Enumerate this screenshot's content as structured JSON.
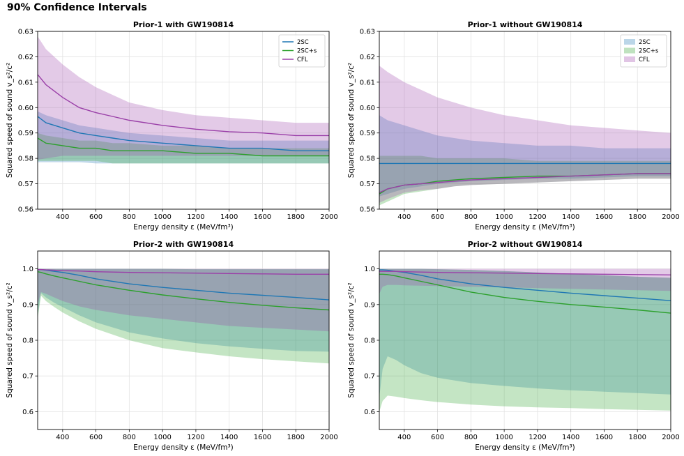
{
  "figure": {
    "title": "90% Confidence Intervals"
  },
  "colors": {
    "2SC": "#1f77b4",
    "2SC+s": "#2ca02c",
    "CFL": "#9a3fa8"
  },
  "chart_data": [
    {
      "type": "line",
      "title": "Prior-1 with GW190814",
      "xlabel": "Energy density ε (MeV/fm³)",
      "ylabel": "Squared speed of sound v_s²/c²",
      "xlim": [
        250,
        2000
      ],
      "ylim": [
        0.56,
        0.63
      ],
      "xticks": [
        400,
        600,
        800,
        1000,
        1200,
        1400,
        1600,
        1800,
        2000
      ],
      "yticks": [
        0.56,
        0.57,
        0.58,
        0.59,
        0.6,
        0.61,
        0.62,
        0.63
      ],
      "ytick_labels": [
        "0.56",
        "0.57",
        "0.58",
        "0.59",
        "0.60",
        "0.61",
        "0.62",
        "0.63"
      ],
      "legend": {
        "style": "line",
        "loc": "upper right",
        "entries": [
          "2SC",
          "2SC+s",
          "CFL"
        ]
      },
      "x": [
        250,
        300,
        400,
        500,
        600,
        700,
        800,
        1000,
        1200,
        1400,
        1600,
        1800,
        2000
      ],
      "series": [
        {
          "name": "2SC",
          "median": [
            0.5965,
            0.594,
            0.592,
            0.59,
            0.589,
            0.588,
            0.587,
            0.586,
            0.585,
            0.584,
            0.584,
            0.583,
            0.583
          ],
          "lower": [
            0.5785,
            0.5785,
            0.5785,
            0.5785,
            0.578,
            0.578,
            0.578,
            0.578,
            0.578,
            0.578,
            0.578,
            0.578,
            0.578
          ],
          "upper": [
            0.5985,
            0.597,
            0.595,
            0.593,
            0.592,
            0.591,
            0.59,
            0.589,
            0.588,
            0.587,
            0.587,
            0.587,
            0.587
          ]
        },
        {
          "name": "2SC+s",
          "median": [
            0.588,
            0.586,
            0.585,
            0.584,
            0.584,
            0.583,
            0.583,
            0.583,
            0.582,
            0.582,
            0.581,
            0.581,
            0.581
          ],
          "lower": [
            0.579,
            0.579,
            0.579,
            0.579,
            0.579,
            0.578,
            0.578,
            0.578,
            0.578,
            0.578,
            0.578,
            0.578,
            0.578
          ],
          "upper": [
            0.59,
            0.589,
            0.588,
            0.587,
            0.587,
            0.586,
            0.586,
            0.585,
            0.585,
            0.584,
            0.584,
            0.584,
            0.584
          ]
        },
        {
          "name": "CFL",
          "median": [
            0.613,
            0.609,
            0.604,
            0.6,
            0.598,
            0.5965,
            0.595,
            0.593,
            0.5915,
            0.5905,
            0.59,
            0.589,
            0.589
          ],
          "lower": [
            0.5795,
            0.58,
            0.581,
            0.581,
            0.581,
            0.581,
            0.581,
            0.581,
            0.581,
            0.581,
            0.581,
            0.581,
            0.581
          ],
          "upper": [
            0.628,
            0.623,
            0.617,
            0.612,
            0.608,
            0.605,
            0.602,
            0.599,
            0.597,
            0.596,
            0.595,
            0.594,
            0.594
          ]
        }
      ]
    },
    {
      "type": "line",
      "title": "Prior-1 without GW190814",
      "xlabel": "Energy density ε (MeV/fm³)",
      "ylabel": "Squared speed of sound v_s²/c²",
      "xlim": [
        250,
        2000
      ],
      "ylim": [
        0.56,
        0.63
      ],
      "xticks": [
        400,
        600,
        800,
        1000,
        1200,
        1400,
        1600,
        1800,
        2000
      ],
      "yticks": [
        0.56,
        0.57,
        0.58,
        0.59,
        0.6,
        0.61,
        0.62,
        0.63
      ],
      "ytick_labels": [
        "0.56",
        "0.57",
        "0.58",
        "0.59",
        "0.60",
        "0.61",
        "0.62",
        "0.63"
      ],
      "legend": {
        "style": "patch",
        "loc": "upper right",
        "entries": [
          "2SC",
          "2SC+s",
          "CFL"
        ]
      },
      "x": [
        250,
        300,
        400,
        500,
        600,
        700,
        800,
        1000,
        1200,
        1400,
        1600,
        1800,
        2000
      ],
      "series": [
        {
          "name": "2SC",
          "median": [
            0.578,
            0.578,
            0.578,
            0.578,
            0.578,
            0.578,
            0.578,
            0.578,
            0.578,
            0.578,
            0.578,
            0.578,
            0.578
          ],
          "lower": [
            0.565,
            0.566,
            0.568,
            0.569,
            0.57,
            0.5705,
            0.571,
            0.5715,
            0.572,
            0.572,
            0.5725,
            0.573,
            0.573
          ],
          "upper": [
            0.597,
            0.595,
            0.593,
            0.591,
            0.589,
            0.588,
            0.587,
            0.586,
            0.585,
            0.585,
            0.584,
            0.584,
            0.584
          ]
        },
        {
          "name": "2SC+s",
          "median": [
            0.566,
            0.568,
            0.5695,
            0.57,
            0.571,
            0.5715,
            0.572,
            0.5725,
            0.573,
            0.573,
            0.5735,
            0.574,
            0.574
          ],
          "lower": [
            0.5615,
            0.563,
            0.566,
            0.567,
            0.568,
            0.569,
            0.5695,
            0.57,
            0.5705,
            0.571,
            0.5715,
            0.572,
            0.572
          ],
          "upper": [
            0.581,
            0.581,
            0.581,
            0.581,
            0.58,
            0.58,
            0.58,
            0.58,
            0.579,
            0.579,
            0.579,
            0.579,
            0.579
          ]
        },
        {
          "name": "CFL",
          "median": [
            0.5665,
            0.568,
            0.5695,
            0.57,
            0.5705,
            0.571,
            0.5715,
            0.572,
            0.5725,
            0.573,
            0.5735,
            0.574,
            0.574
          ],
          "lower": [
            0.5625,
            0.564,
            0.5665,
            0.5675,
            0.568,
            0.569,
            0.5695,
            0.57,
            0.5705,
            0.571,
            0.5715,
            0.572,
            0.572
          ],
          "upper": [
            0.6165,
            0.614,
            0.61,
            0.607,
            0.604,
            0.602,
            0.6,
            0.597,
            0.595,
            0.593,
            0.592,
            0.591,
            0.59
          ]
        }
      ]
    },
    {
      "type": "line",
      "title": "Prior-2 with GW190814",
      "xlabel": "Energy density ε (MeV/fm³)",
      "ylabel": "Squared speed of sound v_s²/c²",
      "xlim": [
        250,
        2000
      ],
      "ylim": [
        0.55,
        1.05
      ],
      "xticks": [
        400,
        600,
        800,
        1000,
        1200,
        1400,
        1600,
        1800,
        2000
      ],
      "yticks": [
        0.6,
        0.7,
        0.8,
        0.9,
        1.0
      ],
      "ytick_labels": [
        "0.6",
        "0.7",
        "0.8",
        "0.9",
        "1.0"
      ],
      "legend": null,
      "x": [
        250,
        270,
        300,
        350,
        400,
        500,
        600,
        800,
        1000,
        1200,
        1400,
        1600,
        1800,
        2000
      ],
      "series": [
        {
          "name": "2SC",
          "median": [
            0.998,
            0.998,
            0.996,
            0.993,
            0.99,
            0.982,
            0.972,
            0.958,
            0.948,
            0.94,
            0.932,
            0.926,
            0.92,
            0.913
          ],
          "lower": [
            0.87,
            0.932,
            0.92,
            0.905,
            0.893,
            0.87,
            0.85,
            0.822,
            0.805,
            0.792,
            0.783,
            0.776,
            0.77,
            0.768
          ],
          "upper": [
            1.0,
            1.0,
            1.0,
            1.0,
            1.0,
            1.0,
            1.0,
            1.0,
            1.0,
            0.999,
            0.999,
            0.999,
            0.999,
            0.999
          ]
        },
        {
          "name": "2SC+s",
          "median": [
            0.992,
            0.99,
            0.986,
            0.98,
            0.975,
            0.965,
            0.955,
            0.94,
            0.927,
            0.916,
            0.906,
            0.898,
            0.891,
            0.885
          ],
          "lower": [
            0.86,
            0.925,
            0.91,
            0.893,
            0.878,
            0.853,
            0.832,
            0.8,
            0.778,
            0.766,
            0.755,
            0.747,
            0.741,
            0.735
          ],
          "upper": [
            1.0,
            1.0,
            1.0,
            1.0,
            1.0,
            1.0,
            1.0,
            1.0,
            1.0,
            0.999,
            0.999,
            0.999,
            0.999,
            0.999
          ]
        },
        {
          "name": "CFL",
          "median": [
            0.998,
            0.998,
            0.997,
            0.996,
            0.995,
            0.994,
            0.992,
            0.99,
            0.989,
            0.988,
            0.987,
            0.986,
            0.985,
            0.985
          ],
          "lower": [
            0.9,
            0.935,
            0.93,
            0.92,
            0.91,
            0.895,
            0.885,
            0.87,
            0.86,
            0.85,
            0.84,
            0.835,
            0.83,
            0.825
          ],
          "upper": [
            1.0,
            1.0,
            1.0,
            1.0,
            1.0,
            1.0,
            1.0,
            1.0,
            1.0,
            1.0,
            1.0,
            1.0,
            1.0,
            1.0
          ]
        }
      ]
    },
    {
      "type": "line",
      "title": "Prior-2 without GW190814",
      "xlabel": "Energy density ε (MeV/fm³)",
      "ylabel": "Squared speed of sound v_s²/c²",
      "xlim": [
        250,
        2000
      ],
      "ylim": [
        0.55,
        1.05
      ],
      "xticks": [
        400,
        600,
        800,
        1000,
        1200,
        1400,
        1600,
        1800,
        2000
      ],
      "yticks": [
        0.6,
        0.7,
        0.8,
        0.9,
        1.0
      ],
      "ytick_labels": [
        "0.6",
        "0.7",
        "0.8",
        "0.9",
        "1.0"
      ],
      "legend": null,
      "x": [
        250,
        270,
        300,
        350,
        400,
        500,
        600,
        800,
        1000,
        1200,
        1400,
        1600,
        1800,
        2000
      ],
      "series": [
        {
          "name": "2SC",
          "median": [
            0.997,
            0.997,
            0.996,
            0.993,
            0.99,
            0.982,
            0.972,
            0.958,
            0.948,
            0.94,
            0.932,
            0.925,
            0.918,
            0.911
          ],
          "lower": [
            0.64,
            0.72,
            0.755,
            0.745,
            0.73,
            0.708,
            0.695,
            0.68,
            0.672,
            0.665,
            0.66,
            0.656,
            0.652,
            0.648
          ],
          "upper": [
            1.0,
            1.0,
            1.0,
            1.0,
            1.0,
            1.0,
            0.999,
            0.997,
            0.994,
            0.99,
            0.986,
            0.982,
            0.978,
            0.975
          ]
        },
        {
          "name": "2SC+s",
          "median": [
            0.985,
            0.985,
            0.984,
            0.98,
            0.975,
            0.965,
            0.955,
            0.935,
            0.92,
            0.909,
            0.9,
            0.893,
            0.885,
            0.876
          ],
          "lower": [
            0.6,
            0.63,
            0.645,
            0.642,
            0.638,
            0.632,
            0.627,
            0.62,
            0.615,
            0.612,
            0.61,
            0.607,
            0.605,
            0.603
          ],
          "upper": [
            1.0,
            1.0,
            1.0,
            1.0,
            1.0,
            1.0,
            0.999,
            0.997,
            0.994,
            0.99,
            0.986,
            0.982,
            0.978,
            0.975
          ]
        },
        {
          "name": "CFL",
          "median": [
            0.993,
            0.993,
            0.993,
            0.993,
            0.992,
            0.991,
            0.99,
            0.989,
            0.988,
            0.987,
            0.986,
            0.985,
            0.984,
            0.983
          ],
          "lower": [
            0.93,
            0.95,
            0.955,
            0.955,
            0.954,
            0.953,
            0.952,
            0.95,
            0.948,
            0.946,
            0.944,
            0.942,
            0.94,
            0.938
          ],
          "upper": [
            1.0,
            1.0,
            1.0,
            1.0,
            1.0,
            1.0,
            1.0,
            1.0,
            1.0,
            1.0,
            1.0,
            1.0,
            1.0,
            1.0
          ]
        }
      ]
    }
  ]
}
